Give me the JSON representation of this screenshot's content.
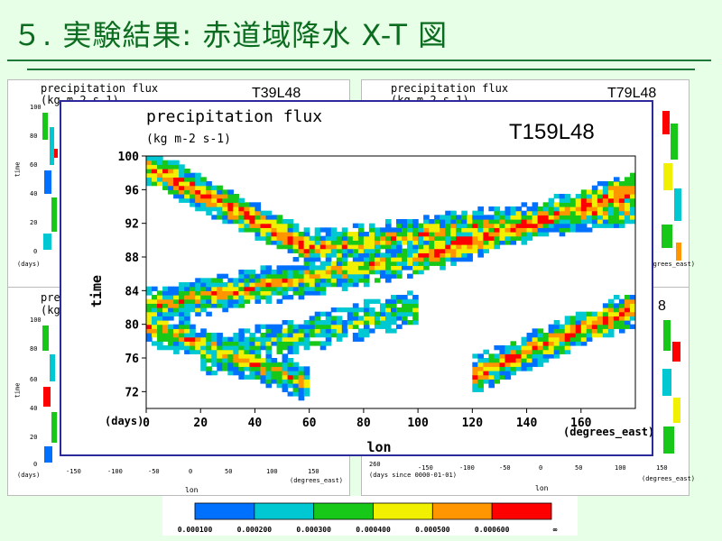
{
  "slide": {
    "title": "５. 実験結果: 赤道域降水 X-T 図",
    "accent_color": "#0b6b1f"
  },
  "panels": {
    "t39": {
      "title": "precipitation flux",
      "units": "(kg m-2 s-1)",
      "label": "T39L48"
    },
    "t79": {
      "title": "precipitation flux",
      "units": "(kg m-2 s-1)",
      "label": "T79L48"
    },
    "bl": {
      "title_partial": "pre",
      "units_partial": "(kg"
    },
    "br": {
      "label_partial": "8"
    },
    "small_yticks": [
      "0",
      "20",
      "40",
      "60",
      "80",
      "100"
    ],
    "small_xticks": [
      "-150",
      "-100",
      "-50",
      "0",
      "50",
      "100",
      "150"
    ],
    "small_ylabel": "time",
    "small_days": "(days)",
    "small_xunit": "(degrees_east)",
    "small_xlabel": "lon",
    "br_days_since": "(days since 0000-01-01)",
    "br_ytick": "260"
  },
  "chart_data": {
    "type": "heatmap",
    "title": "precipitation flux",
    "units": "(kg m-2 s-1)",
    "run_label": "T159L48",
    "xlabel": "lon",
    "xunit": "(degrees_east)",
    "ylabel": "time",
    "yunit": "(days)",
    "xlim": [
      0,
      180
    ],
    "ylim": [
      70,
      100
    ],
    "x_ticks": [
      "0",
      "20",
      "40",
      "60",
      "80",
      "100",
      "120",
      "140",
      "160"
    ],
    "y_ticks": [
      "72",
      "76",
      "80",
      "84",
      "88",
      "92",
      "96",
      "100"
    ],
    "legend": {
      "levels": [
        "0.000100",
        "0.000200",
        "0.000300",
        "0.000400",
        "0.000500",
        "0.000600",
        "∞"
      ],
      "colors": [
        "#0070ff",
        "#00c8d2",
        "#18c818",
        "#f0f000",
        "#ff9600",
        "#ff0000"
      ]
    },
    "rain_bands": [
      {
        "lon": [
          0,
          60
        ],
        "day": [
          99,
          89
        ],
        "intensity": 3
      },
      {
        "lon": [
          60,
          180
        ],
        "day": [
          89,
          94
        ],
        "intensity": 2
      },
      {
        "lon": [
          0,
          100
        ],
        "day": [
          82,
          88
        ],
        "intensity": 2
      },
      {
        "lon": [
          100,
          180
        ],
        "day": [
          88,
          96
        ],
        "intensity": 3
      },
      {
        "lon": [
          0,
          60
        ],
        "day": [
          80,
          73
        ],
        "intensity": 2
      },
      {
        "lon": [
          120,
          180
        ],
        "day": [
          74,
          82
        ],
        "intensity": 3
      },
      {
        "lon": [
          20,
          100
        ],
        "day": [
          76,
          82
        ],
        "intensity": 1
      }
    ]
  }
}
